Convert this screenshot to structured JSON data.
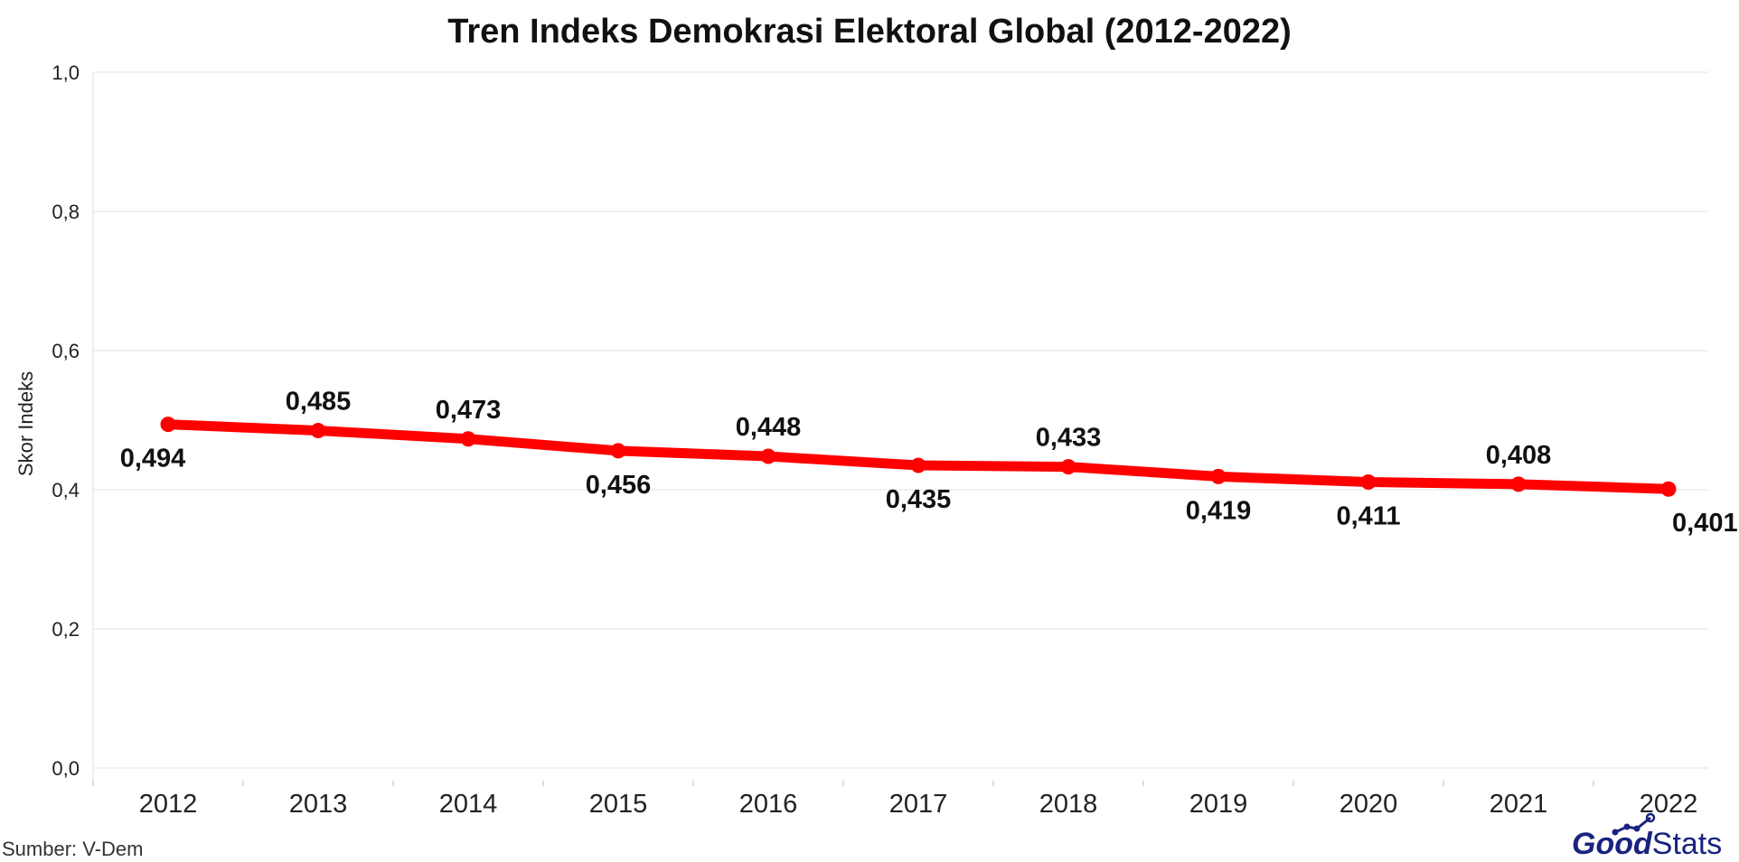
{
  "chart_data": {
    "type": "line",
    "title": "Tren Indeks Demokrasi Elektoral Global (2012-2022)",
    "xlabel": "",
    "ylabel": "Skor Indeks",
    "categories": [
      "2012",
      "2013",
      "2014",
      "2015",
      "2016",
      "2017",
      "2018",
      "2019",
      "2020",
      "2021",
      "2022"
    ],
    "series": [
      {
        "values": [
          0.494,
          0.485,
          0.473,
          0.456,
          0.448,
          0.435,
          0.433,
          0.419,
          0.411,
          0.408,
          0.401
        ],
        "labels": [
          "0,494",
          "0,485",
          "0,473",
          "0,456",
          "0,448",
          "0,435",
          "0,433",
          "0,419",
          "0,411",
          "0,408",
          "0,401"
        ],
        "label_positions": [
          "below",
          "above",
          "above",
          "below",
          "above",
          "below",
          "above",
          "below",
          "below",
          "above",
          "below"
        ],
        "color": "#ff0000"
      }
    ],
    "ylim": [
      0,
      1.0
    ],
    "yticks": [
      0,
      0.2,
      0.4,
      0.6,
      0.8,
      1.0
    ],
    "ytick_labels": [
      "0,0",
      "0,2",
      "0,4",
      "0,6",
      "0,8",
      "1,0"
    ],
    "grid": true,
    "legend": "none"
  },
  "source": "Sumber: V-Dem",
  "logo": {
    "part1": "Good",
    "part2": "Stats",
    "color": "#1a237e"
  },
  "colors": {
    "line": "#ff0000",
    "grid": "#e8e8e8",
    "text": "#111111"
  }
}
